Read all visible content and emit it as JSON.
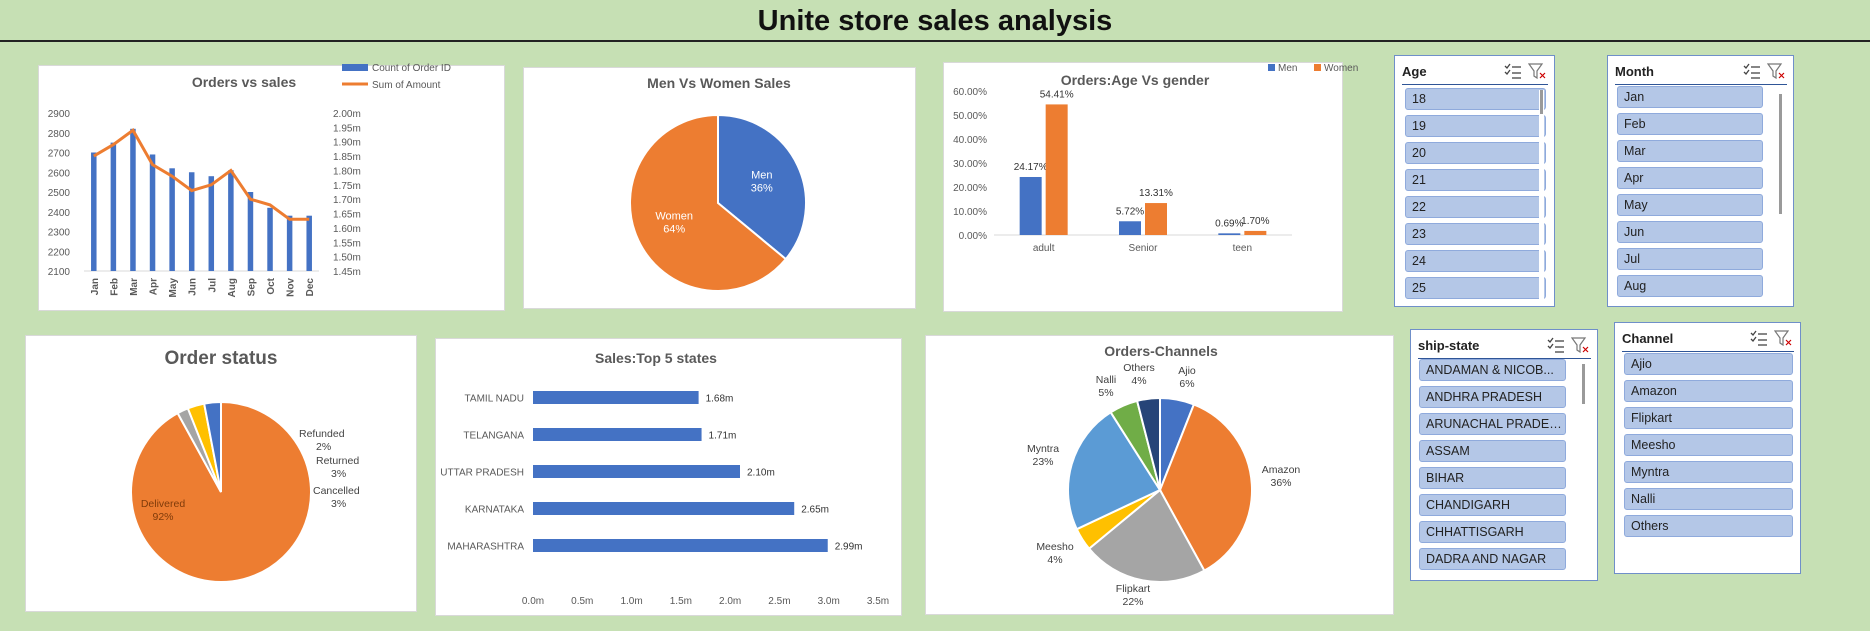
{
  "page_title": "Unite store sales analysis",
  "colors": {
    "blue": "#4472c4",
    "orange": "#ed7d31",
    "gray": "#a5a5a5",
    "yellow": "#ffc000",
    "lightblue": "#5b9bd5",
    "green": "#70ad47",
    "navy": "#264478",
    "slicer_item": "#b4c7e7"
  },
  "chart_data": [
    {
      "id": "orders_vs_sales",
      "type": "bar",
      "combo": "bar+line",
      "title": "Orders vs sales",
      "categories": [
        "Jan",
        "Feb",
        "Mar",
        "Apr",
        "May",
        "Jun",
        "Jul",
        "Aug",
        "Sep",
        "Oct",
        "Nov",
        "Dec"
      ],
      "series": [
        {
          "name": "Count of Order ID",
          "type": "bar",
          "axis": "left",
          "values": [
            2700,
            2750,
            2820,
            2690,
            2620,
            2600,
            2580,
            2610,
            2500,
            2420,
            2380,
            2380
          ]
        },
        {
          "name": "Sum of Amount",
          "type": "line",
          "axis": "right",
          "values": [
            1.85,
            1.89,
            1.94,
            1.82,
            1.78,
            1.73,
            1.75,
            1.8,
            1.7,
            1.68,
            1.63,
            1.63
          ]
        }
      ],
      "y_left": {
        "min": 2100,
        "max": 2900,
        "ticks": [
          "2900",
          "2800",
          "2700",
          "2600",
          "2500",
          "2400",
          "2300",
          "2200",
          "2100"
        ]
      },
      "y_right": {
        "min": 1.45,
        "max": 2.0,
        "ticks": [
          "2.00m",
          "1.95m",
          "1.90m",
          "1.85m",
          "1.80m",
          "1.75m",
          "1.70m",
          "1.65m",
          "1.60m",
          "1.55m",
          "1.50m",
          "1.45m"
        ]
      },
      "legend": "top-right",
      "grid": false
    },
    {
      "id": "men_vs_women",
      "type": "pie",
      "title": "Men Vs Women Sales",
      "slices": [
        {
          "label": "Men",
          "value": 36,
          "text": "36%",
          "color": "#4472c4"
        },
        {
          "label": "Women",
          "value": 64,
          "text": "64%",
          "color": "#ed7d31"
        }
      ]
    },
    {
      "id": "age_vs_gender",
      "type": "bar",
      "title": "Orders:Age Vs gender",
      "categories": [
        "adult",
        "Senior",
        "teen"
      ],
      "series": [
        {
          "name": "Men",
          "values": [
            24.17,
            5.72,
            0.69
          ],
          "labels": [
            "24.17%",
            "5.72%",
            "0.69%"
          ],
          "color": "#4472c4"
        },
        {
          "name": "Women",
          "values": [
            54.41,
            13.31,
            1.7
          ],
          "labels": [
            "54.41%",
            "13.31%",
            "1.70%"
          ],
          "color": "#ed7d31"
        }
      ],
      "y": {
        "min": 0,
        "max": 60,
        "ticks": [
          "60.00%",
          "50.00%",
          "40.00%",
          "30.00%",
          "20.00%",
          "10.00%",
          "0.00%"
        ]
      },
      "legend": "top-right",
      "grid": false
    },
    {
      "id": "order_status",
      "type": "pie",
      "title": "Order status",
      "slices": [
        {
          "label": "Delivered",
          "value": 92,
          "text": "92%",
          "color": "#ed7d31"
        },
        {
          "label": "Refunded",
          "value": 2,
          "text": "2%",
          "color": "#a5a5a5"
        },
        {
          "label": "Returned",
          "value": 3,
          "text": "3%",
          "color": "#ffc000"
        },
        {
          "label": "Cancelled",
          "value": 3,
          "text": "3%",
          "color": "#4472c4"
        }
      ]
    },
    {
      "id": "top5_states",
      "type": "bar",
      "orientation": "horizontal",
      "title": "Sales:Top 5 states",
      "categories": [
        "TAMIL NADU",
        "TELANGANA",
        "UTTAR PRADESH",
        "KARNATAKA",
        "MAHARASHTRA"
      ],
      "values": [
        1.68,
        1.71,
        2.1,
        2.65,
        2.99
      ],
      "labels": [
        "1.68m",
        "1.71m",
        "2.10m",
        "2.65m",
        "2.99m"
      ],
      "x": {
        "min": 0,
        "max": 3.5,
        "ticks": [
          "0.0m",
          "0.5m",
          "1.0m",
          "1.5m",
          "2.0m",
          "2.5m",
          "3.0m",
          "3.5m"
        ]
      },
      "grid": false
    },
    {
      "id": "orders_channels",
      "type": "pie",
      "title": "Orders-Channels",
      "slices": [
        {
          "label": "Ajio",
          "value": 6,
          "text": "6%",
          "color": "#4472c4"
        },
        {
          "label": "Amazon",
          "value": 36,
          "text": "36%",
          "color": "#ed7d31"
        },
        {
          "label": "Flipkart",
          "value": 22,
          "text": "22%",
          "color": "#a5a5a5"
        },
        {
          "label": "Meesho",
          "value": 4,
          "text": "4%",
          "color": "#ffc000"
        },
        {
          "label": "Myntra",
          "value": 23,
          "text": "23%",
          "color": "#5b9bd5"
        },
        {
          "label": "Nalli",
          "value": 5,
          "text": "5%",
          "color": "#70ad47"
        },
        {
          "label": "Others",
          "value": 4,
          "text": "4%",
          "color": "#264478"
        }
      ]
    }
  ],
  "slicers": {
    "age": {
      "title": "Age",
      "items": [
        "18",
        "19",
        "20",
        "21",
        "22",
        "23",
        "24",
        "25"
      ]
    },
    "month": {
      "title": "Month",
      "items": [
        "Jan",
        "Feb",
        "Mar",
        "Apr",
        "May",
        "Jun",
        "Jul",
        "Aug"
      ]
    },
    "ship_state": {
      "title": "ship-state",
      "items": [
        "ANDAMAN & NICOB...",
        "ANDHRA PRADESH",
        "ARUNACHAL PRADESH",
        "ASSAM",
        "BIHAR",
        "CHANDIGARH",
        "CHHATTISGARH",
        "DADRA AND NAGAR"
      ]
    },
    "channel": {
      "title": "Channel",
      "items": [
        "Ajio",
        "Amazon",
        "Flipkart",
        "Meesho",
        "Myntra",
        "Nalli",
        "Others"
      ]
    }
  }
}
